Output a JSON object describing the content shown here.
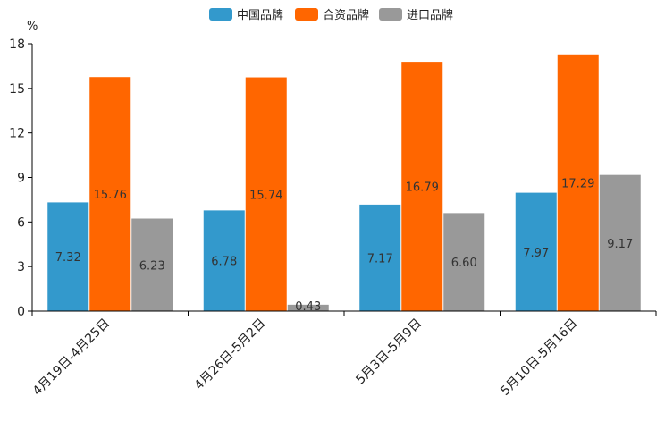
{
  "chart_data": {
    "type": "bar",
    "title": "",
    "xlabel": "",
    "ylabel": "%",
    "ylim": [
      0,
      18
    ],
    "yticks": [
      0,
      3,
      6,
      9,
      12,
      15,
      18
    ],
    "grid": false,
    "legend_position": "top-center",
    "categories": [
      "4月19日-4月25日",
      "4月26日-5月2日",
      "5月3日-5月9日",
      "5月10日-5月16日"
    ],
    "series": [
      {
        "name": "中国品牌",
        "color": "#3399cc",
        "values": [
          7.32,
          6.78,
          7.17,
          7.97
        ],
        "labels": [
          "7.32",
          "6.78",
          "7.17",
          "7.97"
        ]
      },
      {
        "name": "合资品牌",
        "color": "#ff6600",
        "values": [
          15.76,
          15.74,
          16.79,
          17.29
        ],
        "labels": [
          "15.76",
          "15.74",
          "16.79",
          "17.29"
        ]
      },
      {
        "name": "进口品牌",
        "color": "#999999",
        "values": [
          6.23,
          0.43,
          6.6,
          9.17
        ],
        "labels": [
          "6.23",
          "0.43",
          "6.60",
          "9.17"
        ]
      }
    ]
  }
}
